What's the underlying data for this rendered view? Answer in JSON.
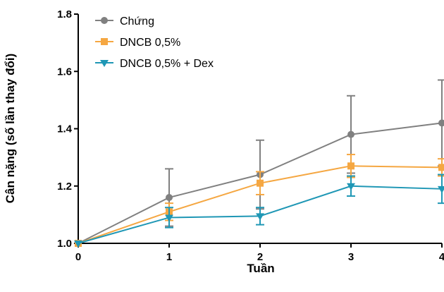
{
  "chart_data": {
    "type": "line",
    "title": "",
    "xlabel": "Tuần",
    "ylabel": "Cân nặng (số lần thay đổi)",
    "x": [
      0,
      1,
      2,
      3,
      4
    ],
    "xlim": [
      0,
      4
    ],
    "ylim": [
      1.0,
      1.8
    ],
    "xticks": [
      "0",
      "1",
      "2",
      "3",
      "4"
    ],
    "yticks": [
      "1.0",
      "1.2",
      "1.4",
      "1.6",
      "1.8"
    ],
    "yticks_values": [
      1.0,
      1.2,
      1.4,
      1.6,
      1.8
    ],
    "grid": false,
    "legend_position": "top-left",
    "series": [
      {
        "name": "Chứng",
        "color": "#808080",
        "marker": "circle",
        "values": [
          1.0,
          1.16,
          1.24,
          1.38,
          1.42
        ],
        "error": [
          0.0,
          0.1,
          0.12,
          0.135,
          0.15
        ]
      },
      {
        "name": "DNCB 0,5%",
        "color": "#f5a742",
        "marker": "square",
        "values": [
          1.0,
          1.11,
          1.21,
          1.27,
          1.265
        ],
        "error": [
          0.0,
          0.03,
          0.04,
          0.04,
          0.03
        ]
      },
      {
        "name": "DNCB 0,5% + Dex",
        "color": "#1f97b5",
        "marker": "triangle-down",
        "values": [
          1.0,
          1.09,
          1.095,
          1.2,
          1.19
        ],
        "error": [
          0.0,
          0.035,
          0.03,
          0.035,
          0.05
        ]
      }
    ]
  }
}
